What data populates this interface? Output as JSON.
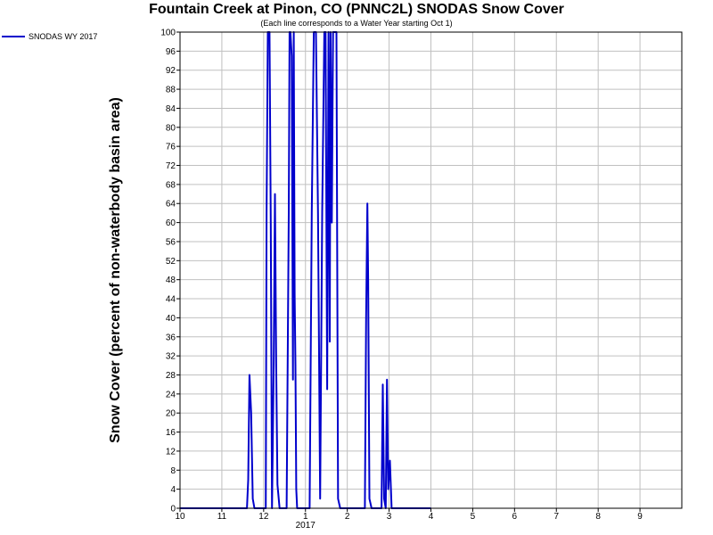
{
  "chart_data": {
    "type": "line",
    "title": "Fountain Creek at Pinon, CO (PNNC2L) SNODAS Snow Cover",
    "subtitle": "(Each line corresponds to a Water Year starting Oct 1)",
    "ylabel": "Snow Cover (percent of non-waterbody basin area)",
    "xlabel": "",
    "year_label": "2017",
    "ylim": [
      0,
      100
    ],
    "yticks": [
      0,
      4,
      8,
      12,
      16,
      20,
      24,
      28,
      32,
      36,
      40,
      44,
      48,
      52,
      56,
      60,
      64,
      68,
      72,
      76,
      80,
      84,
      88,
      92,
      96,
      100
    ],
    "xlim": [
      10,
      10.98
    ],
    "xticks": [
      {
        "v": 10,
        "label": "10"
      },
      {
        "v": 11,
        "label": "11"
      },
      {
        "v": 12,
        "label": "12"
      },
      {
        "v": 13,
        "label": "1"
      },
      {
        "v": 14,
        "label": "2"
      },
      {
        "v": 15,
        "label": "3"
      },
      {
        "v": 16,
        "label": "4"
      },
      {
        "v": 17,
        "label": "5"
      },
      {
        "v": 18,
        "label": "6"
      },
      {
        "v": 19,
        "label": "7"
      },
      {
        "v": 20,
        "label": "8"
      },
      {
        "v": 21,
        "label": "9"
      }
    ],
    "grid": true,
    "legend_position": "top-left",
    "colors": {
      "series": "#0000cc",
      "grid": "#c0c0c0",
      "axis": "#000000"
    },
    "series": [
      {
        "name": "SNODAS WY 2017",
        "x": [
          10.0,
          11.4,
          11.6,
          11.63,
          11.66,
          11.7,
          11.74,
          11.78,
          11.85,
          11.95,
          12.05,
          12.07,
          12.1,
          12.14,
          12.17,
          12.2,
          12.24,
          12.27,
          12.3,
          12.33,
          12.38,
          12.45,
          12.55,
          12.6,
          12.62,
          12.64,
          12.67,
          12.7,
          12.72,
          12.74,
          12.76,
          12.78,
          12.8,
          12.83,
          12.88,
          13.0,
          13.1,
          13.15,
          13.2,
          13.25,
          13.3,
          13.35,
          13.4,
          13.45,
          13.48,
          13.52,
          13.55,
          13.58,
          13.6,
          13.63,
          13.66,
          13.7,
          13.74,
          13.78,
          13.83,
          13.9,
          14.0,
          14.2,
          14.35,
          14.42,
          14.45,
          14.48,
          14.5,
          14.53,
          14.58,
          14.65,
          14.75,
          14.82,
          14.85,
          14.88,
          14.92,
          14.95,
          14.98,
          15.02,
          15.06,
          15.15,
          15.3,
          15.7,
          16.0
        ],
        "y": [
          0,
          0,
          0,
          6,
          28,
          20,
          2,
          0,
          0,
          0,
          0,
          62,
          100,
          100,
          60,
          0,
          30,
          66,
          30,
          5,
          0,
          0,
          0,
          62,
          100,
          100,
          95,
          27,
          100,
          45,
          30,
          4,
          0,
          0,
          0,
          0,
          0,
          62,
          100,
          100,
          62,
          2,
          62,
          100,
          100,
          25,
          100,
          35,
          100,
          60,
          100,
          100,
          100,
          2,
          0,
          0,
          0,
          0,
          0,
          0,
          40,
          64,
          48,
          2,
          0,
          0,
          0,
          0,
          26,
          2,
          0,
          27,
          4,
          10,
          0,
          0,
          0,
          0,
          0
        ]
      }
    ]
  }
}
